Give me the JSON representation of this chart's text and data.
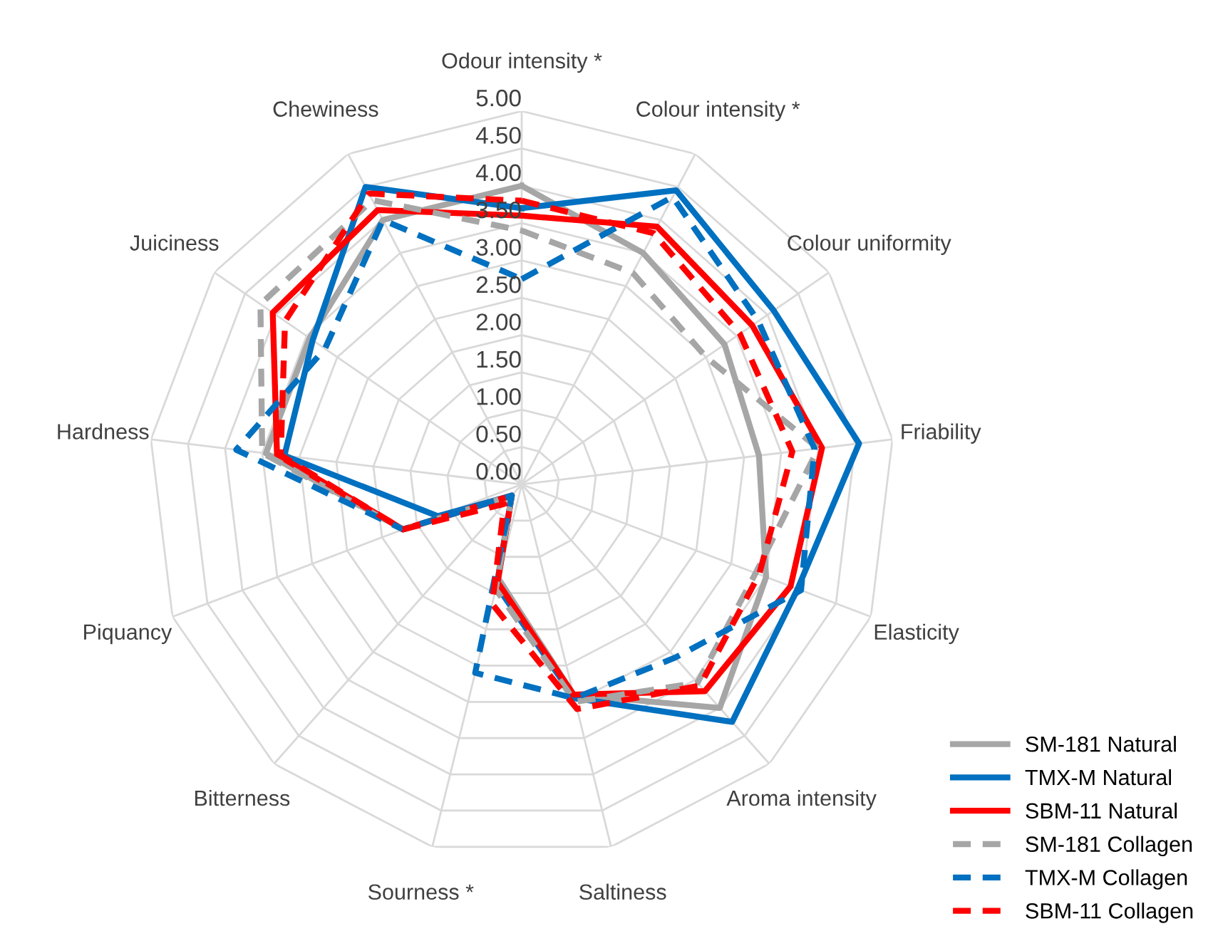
{
  "chart_data": {
    "type": "radar",
    "categories": [
      "Odour intensity *",
      "Colour intensity *",
      "Colour uniformity",
      "Friability",
      "Elasticity",
      "Aroma intensity",
      "Saltiness",
      "Sourness *",
      "Bitterness",
      "Piquancy",
      "Hardness",
      "Juiciness",
      "Chewiness"
    ],
    "ylim": [
      0,
      5
    ],
    "yticks": [
      {
        "value": 0,
        "label": "0.00"
      },
      {
        "value": 0.5,
        "label": "0.50"
      },
      {
        "value": 1,
        "label": "1.00"
      },
      {
        "value": 1.5,
        "label": "1.50"
      },
      {
        "value": 2,
        "label": "2.00"
      },
      {
        "value": 2.5,
        "label": "2.50"
      },
      {
        "value": 3,
        "label": "3.00"
      },
      {
        "value": 3.5,
        "label": "3.50"
      },
      {
        "value": 4,
        "label": "4.00"
      },
      {
        "value": 4.5,
        "label": "4.50"
      },
      {
        "value": 5,
        "label": "5.00"
      }
    ],
    "grid": true,
    "legend": "bottom right",
    "marker": "none",
    "series": [
      {
        "name": "SM-181 Natural",
        "color": "#a6a6a6",
        "line_style": "solid",
        "values": [
          4.0,
          3.5,
          3.3,
          3.2,
          3.5,
          4.0,
          2.9,
          1.3,
          0.2,
          1.7,
          3.45,
          3.45,
          4.0
        ]
      },
      {
        "name": "TMX-M Natural",
        "color": "#0070c0",
        "line_style": "solid",
        "values": [
          3.7,
          4.45,
          4.1,
          4.55,
          3.95,
          4.25,
          2.95,
          1.4,
          0.2,
          1.2,
          3.2,
          3.4,
          4.5
        ]
      },
      {
        "name": "SBM-11 Natural",
        "color": "#ff0000",
        "line_style": "solid",
        "values": [
          3.6,
          3.9,
          3.75,
          4.05,
          3.85,
          3.7,
          2.9,
          1.35,
          0.2,
          1.7,
          3.3,
          4.05,
          4.15
        ]
      },
      {
        "name": "SM-181 Collagen",
        "color": "#a6a6a6",
        "line_style": "dashed",
        "values": [
          3.4,
          3.2,
          3.0,
          4.0,
          3.35,
          3.55,
          3.0,
          1.45,
          0.2,
          1.7,
          3.5,
          4.25,
          4.3
        ]
      },
      {
        "name": "TMX-M Collagen",
        "color": "#0070c0",
        "line_style": "dashed",
        "values": [
          2.75,
          4.35,
          3.85,
          3.95,
          4.0,
          3.1,
          2.95,
          2.6,
          0.2,
          1.7,
          3.85,
          3.2,
          4.0
        ]
      },
      {
        "name": "SBM-11 Collagen",
        "color": "#ff0000",
        "line_style": "dashed",
        "values": [
          3.8,
          3.8,
          3.55,
          3.65,
          3.4,
          3.6,
          3.1,
          1.65,
          0.35,
          1.7,
          3.25,
          3.85,
          4.4
        ]
      }
    ]
  }
}
